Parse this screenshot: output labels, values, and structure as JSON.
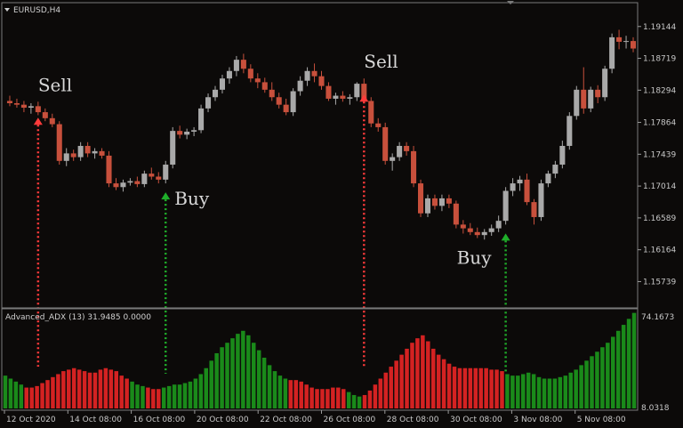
{
  "chart_data": {
    "type": "candlestick",
    "symbol_label": "EURUSD,H4",
    "indicator_label": "Advanced_ADX (13) 31.9485 0.0000",
    "indicator_top_label": "74.1673",
    "indicator_bottom_label": "8.0318",
    "price_axis_ticks": [
      "1.19144",
      "1.18719",
      "1.18294",
      "1.17864",
      "1.17439",
      "1.17014",
      "1.16589",
      "1.16164",
      "1.15739"
    ],
    "x_ticks": [
      "12 Oct 2020",
      "14 Oct 08:00",
      "16 Oct 08:00",
      "20 Oct 08:00",
      "22 Oct 08:00",
      "26 Oct 08:00",
      "28 Oct 08:00",
      "30 Oct 08:00",
      "3 Nov 08:00",
      "5 Nov 08:00"
    ],
    "price_range": [
      1.154,
      1.1945
    ],
    "candles": [
      [
        1.1815,
        1.1822,
        1.1808,
        1.1812
      ],
      [
        1.1812,
        1.1818,
        1.1806,
        1.181
      ],
      [
        1.181,
        1.1815,
        1.18,
        1.1806
      ],
      [
        1.1806,
        1.1812,
        1.1798,
        1.1808
      ],
      [
        1.1808,
        1.1814,
        1.1796,
        1.18
      ],
      [
        1.18,
        1.1805,
        1.1788,
        1.1792
      ],
      [
        1.1792,
        1.1798,
        1.178,
        1.1784
      ],
      [
        1.1784,
        1.1788,
        1.173,
        1.1735
      ],
      [
        1.1735,
        1.1752,
        1.1728,
        1.1745
      ],
      [
        1.1745,
        1.175,
        1.1735,
        1.174
      ],
      [
        1.174,
        1.176,
        1.1735,
        1.1755
      ],
      [
        1.1755,
        1.176,
        1.174,
        1.1745
      ],
      [
        1.1745,
        1.1752,
        1.1738,
        1.1748
      ],
      [
        1.1748,
        1.1752,
        1.1738,
        1.1742
      ],
      [
        1.1742,
        1.1748,
        1.17,
        1.1705
      ],
      [
        1.1705,
        1.1712,
        1.1696,
        1.17
      ],
      [
        1.17,
        1.171,
        1.1694,
        1.1706
      ],
      [
        1.1706,
        1.1712,
        1.1702,
        1.1708
      ],
      [
        1.1708,
        1.1714,
        1.17,
        1.1704
      ],
      [
        1.1704,
        1.1722,
        1.17,
        1.1718
      ],
      [
        1.1718,
        1.1726,
        1.171,
        1.1714
      ],
      [
        1.1714,
        1.172,
        1.1705,
        1.171
      ],
      [
        1.171,
        1.1735,
        1.1705,
        1.173
      ],
      [
        1.173,
        1.178,
        1.1725,
        1.1775
      ],
      [
        1.1775,
        1.1782,
        1.1765,
        1.177
      ],
      [
        1.177,
        1.1778,
        1.1764,
        1.1774
      ],
      [
        1.1774,
        1.178,
        1.1768,
        1.1776
      ],
      [
        1.1776,
        1.181,
        1.1772,
        1.1805
      ],
      [
        1.1805,
        1.1825,
        1.18,
        1.182
      ],
      [
        1.182,
        1.1835,
        1.1815,
        1.183
      ],
      [
        1.183,
        1.185,
        1.1825,
        1.1845
      ],
      [
        1.1845,
        1.186,
        1.1838,
        1.1855
      ],
      [
        1.1855,
        1.1875,
        1.1848,
        1.187
      ],
      [
        1.187,
        1.1878,
        1.1852,
        1.1858
      ],
      [
        1.1858,
        1.1864,
        1.184,
        1.1845
      ],
      [
        1.1845,
        1.1852,
        1.1832,
        1.184
      ],
      [
        1.184,
        1.1846,
        1.1826,
        1.183
      ],
      [
        1.183,
        1.184,
        1.1815,
        1.182
      ],
      [
        1.182,
        1.1826,
        1.1805,
        1.181
      ],
      [
        1.181,
        1.1818,
        1.1796,
        1.18
      ],
      [
        1.18,
        1.1832,
        1.1795,
        1.1828
      ],
      [
        1.1828,
        1.1848,
        1.1822,
        1.1842
      ],
      [
        1.1842,
        1.186,
        1.1835,
        1.1855
      ],
      [
        1.1855,
        1.1865,
        1.184,
        1.1848
      ],
      [
        1.1848,
        1.1855,
        1.183,
        1.1835
      ],
      [
        1.1835,
        1.184,
        1.1815,
        1.1818
      ],
      [
        1.1818,
        1.1826,
        1.181,
        1.1822
      ],
      [
        1.1822,
        1.1828,
        1.1814,
        1.1818
      ],
      [
        1.1818,
        1.1824,
        1.181,
        1.182
      ],
      [
        1.182,
        1.184,
        1.1815,
        1.1838
      ],
      [
        1.1838,
        1.1845,
        1.1812,
        1.1815
      ],
      [
        1.1815,
        1.182,
        1.178,
        1.1785
      ],
      [
        1.1785,
        1.1792,
        1.1774,
        1.178
      ],
      [
        1.178,
        1.1786,
        1.173,
        1.1735
      ],
      [
        1.1735,
        1.1745,
        1.1722,
        1.174
      ],
      [
        1.174,
        1.176,
        1.1735,
        1.1755
      ],
      [
        1.1755,
        1.176,
        1.1742,
        1.1748
      ],
      [
        1.1748,
        1.1755,
        1.17,
        1.1705
      ],
      [
        1.1705,
        1.171,
        1.166,
        1.1665
      ],
      [
        1.1665,
        1.169,
        1.166,
        1.1685
      ],
      [
        1.1685,
        1.169,
        1.167,
        1.1675
      ],
      [
        1.1675,
        1.169,
        1.1668,
        1.1685
      ],
      [
        1.1685,
        1.169,
        1.1672,
        1.1678
      ],
      [
        1.1678,
        1.1682,
        1.1645,
        1.165
      ],
      [
        1.165,
        1.1656,
        1.1638,
        1.1645
      ],
      [
        1.1645,
        1.1652,
        1.1636,
        1.164
      ],
      [
        1.164,
        1.1646,
        1.1632,
        1.1636
      ],
      [
        1.1636,
        1.1644,
        1.163,
        1.164
      ],
      [
        1.164,
        1.165,
        1.1635,
        1.1645
      ],
      [
        1.1645,
        1.1662,
        1.164,
        1.1655
      ],
      [
        1.1655,
        1.17,
        1.165,
        1.1695
      ],
      [
        1.1695,
        1.1712,
        1.1688,
        1.1705
      ],
      [
        1.1705,
        1.1715,
        1.1695,
        1.171
      ],
      [
        1.171,
        1.1718,
        1.1676,
        1.168
      ],
      [
        1.168,
        1.1684,
        1.165,
        1.166
      ],
      [
        1.166,
        1.171,
        1.1655,
        1.1705
      ],
      [
        1.1705,
        1.1722,
        1.17,
        1.1718
      ],
      [
        1.1718,
        1.1735,
        1.1712,
        1.173
      ],
      [
        1.173,
        1.1762,
        1.1725,
        1.1755
      ],
      [
        1.1755,
        1.18,
        1.175,
        1.1795
      ],
      [
        1.1795,
        1.1835,
        1.179,
        1.183
      ],
      [
        1.183,
        1.186,
        1.1798,
        1.1805
      ],
      [
        1.1805,
        1.1834,
        1.18,
        1.183
      ],
      [
        1.183,
        1.1836,
        1.1812,
        1.182
      ],
      [
        1.182,
        1.1862,
        1.1815,
        1.1858
      ],
      [
        1.1858,
        1.1905,
        1.1852,
        1.19
      ],
      [
        1.19,
        1.191,
        1.1884,
        1.1894
      ],
      [
        1.1894,
        1.1902,
        1.1885,
        1.1895
      ],
      [
        1.1895,
        1.19,
        1.188,
        1.1885
      ]
    ],
    "adx_bars": [
      {
        "v": 30,
        "c": "g"
      },
      {
        "v": 28,
        "c": "g"
      },
      {
        "v": 26,
        "c": "g"
      },
      {
        "v": 24,
        "c": "g"
      },
      {
        "v": 22,
        "c": "r"
      },
      {
        "v": 22,
        "c": "r"
      },
      {
        "v": 23,
        "c": "r"
      },
      {
        "v": 25,
        "c": "r"
      },
      {
        "v": 27,
        "c": "r"
      },
      {
        "v": 29,
        "c": "r"
      },
      {
        "v": 31,
        "c": "r"
      },
      {
        "v": 33,
        "c": "r"
      },
      {
        "v": 34,
        "c": "r"
      },
      {
        "v": 35,
        "c": "r"
      },
      {
        "v": 34,
        "c": "r"
      },
      {
        "v": 33,
        "c": "r"
      },
      {
        "v": 32,
        "c": "r"
      },
      {
        "v": 32,
        "c": "r"
      },
      {
        "v": 34,
        "c": "r"
      },
      {
        "v": 35,
        "c": "r"
      },
      {
        "v": 34,
        "c": "r"
      },
      {
        "v": 33,
        "c": "r"
      },
      {
        "v": 30,
        "c": "r"
      },
      {
        "v": 28,
        "c": "r"
      },
      {
        "v": 26,
        "c": "g"
      },
      {
        "v": 24,
        "c": "g"
      },
      {
        "v": 23,
        "c": "g"
      },
      {
        "v": 22,
        "c": "r"
      },
      {
        "v": 21,
        "c": "r"
      },
      {
        "v": 21,
        "c": "r"
      },
      {
        "v": 22,
        "c": "g"
      },
      {
        "v": 23,
        "c": "g"
      },
      {
        "v": 24,
        "c": "g"
      },
      {
        "v": 24,
        "c": "g"
      },
      {
        "v": 25,
        "c": "g"
      },
      {
        "v": 26,
        "c": "g"
      },
      {
        "v": 28,
        "c": "g"
      },
      {
        "v": 31,
        "c": "g"
      },
      {
        "v": 35,
        "c": "g"
      },
      {
        "v": 40,
        "c": "g"
      },
      {
        "v": 45,
        "c": "g"
      },
      {
        "v": 49,
        "c": "g"
      },
      {
        "v": 52,
        "c": "g"
      },
      {
        "v": 55,
        "c": "g"
      },
      {
        "v": 58,
        "c": "g"
      },
      {
        "v": 60,
        "c": "g"
      },
      {
        "v": 57,
        "c": "g"
      },
      {
        "v": 52,
        "c": "g"
      },
      {
        "v": 47,
        "c": "g"
      },
      {
        "v": 42,
        "c": "g"
      },
      {
        "v": 37,
        "c": "g"
      },
      {
        "v": 33,
        "c": "g"
      },
      {
        "v": 30,
        "c": "g"
      },
      {
        "v": 28,
        "c": "g"
      },
      {
        "v": 27,
        "c": "r"
      },
      {
        "v": 27,
        "c": "r"
      },
      {
        "v": 26,
        "c": "r"
      },
      {
        "v": 24,
        "c": "r"
      },
      {
        "v": 22,
        "c": "r"
      },
      {
        "v": 21,
        "c": "r"
      },
      {
        "v": 21,
        "c": "r"
      },
      {
        "v": 21,
        "c": "r"
      },
      {
        "v": 22,
        "c": "r"
      },
      {
        "v": 22,
        "c": "r"
      },
      {
        "v": 21,
        "c": "r"
      },
      {
        "v": 19,
        "c": "g"
      },
      {
        "v": 17,
        "c": "g"
      },
      {
        "v": 16,
        "c": "g"
      },
      {
        "v": 17,
        "c": "r"
      },
      {
        "v": 20,
        "c": "r"
      },
      {
        "v": 24,
        "c": "r"
      },
      {
        "v": 28,
        "c": "r"
      },
      {
        "v": 32,
        "c": "r"
      },
      {
        "v": 36,
        "c": "r"
      },
      {
        "v": 40,
        "c": "r"
      },
      {
        "v": 44,
        "c": "r"
      },
      {
        "v": 48,
        "c": "r"
      },
      {
        "v": 52,
        "c": "r"
      },
      {
        "v": 55,
        "c": "r"
      },
      {
        "v": 57,
        "c": "r"
      },
      {
        "v": 53,
        "c": "r"
      },
      {
        "v": 48,
        "c": "r"
      },
      {
        "v": 44,
        "c": "r"
      },
      {
        "v": 41,
        "c": "r"
      },
      {
        "v": 38,
        "c": "r"
      },
      {
        "v": 36,
        "c": "r"
      },
      {
        "v": 35,
        "c": "r"
      },
      {
        "v": 35,
        "c": "r"
      },
      {
        "v": 35,
        "c": "r"
      },
      {
        "v": 35,
        "c": "r"
      },
      {
        "v": 35,
        "c": "r"
      },
      {
        "v": 35,
        "c": "r"
      },
      {
        "v": 34,
        "c": "r"
      },
      {
        "v": 34,
        "c": "r"
      },
      {
        "v": 33,
        "c": "r"
      },
      {
        "v": 31,
        "c": "g"
      },
      {
        "v": 30,
        "c": "g"
      },
      {
        "v": 30,
        "c": "g"
      },
      {
        "v": 31,
        "c": "g"
      },
      {
        "v": 32,
        "c": "g"
      },
      {
        "v": 31,
        "c": "g"
      },
      {
        "v": 29,
        "c": "g"
      },
      {
        "v": 28,
        "c": "g"
      },
      {
        "v": 28,
        "c": "g"
      },
      {
        "v": 28,
        "c": "g"
      },
      {
        "v": 29,
        "c": "g"
      },
      {
        "v": 30,
        "c": "g"
      },
      {
        "v": 32,
        "c": "g"
      },
      {
        "v": 34,
        "c": "g"
      },
      {
        "v": 37,
        "c": "g"
      },
      {
        "v": 40,
        "c": "g"
      },
      {
        "v": 43,
        "c": "g"
      },
      {
        "v": 46,
        "c": "g"
      },
      {
        "v": 49,
        "c": "g"
      },
      {
        "v": 52,
        "c": "g"
      },
      {
        "v": 56,
        "c": "g"
      },
      {
        "v": 60,
        "c": "g"
      },
      {
        "v": 64,
        "c": "g"
      },
      {
        "v": 68,
        "c": "g"
      },
      {
        "v": 72,
        "c": "g"
      }
    ],
    "adx_range": [
      8.0318,
      74.1673
    ],
    "signals": [
      {
        "label": "Sell",
        "type": "sell",
        "candle": 4
      },
      {
        "label": "Buy",
        "type": "buy",
        "candle": 22
      },
      {
        "label": "Sell",
        "type": "sell",
        "candle": 50
      },
      {
        "label": "Buy",
        "type": "buy",
        "candle": 70
      }
    ],
    "colors": {
      "bull": "#a9a9a9",
      "bear": "#c8503c",
      "adx_green": "#1a8a1a",
      "adx_red": "#d42222",
      "sell": "#ff3b3b",
      "buy": "#1fae2a",
      "background": "#0c0a09",
      "border": "#7a7a7a"
    }
  }
}
